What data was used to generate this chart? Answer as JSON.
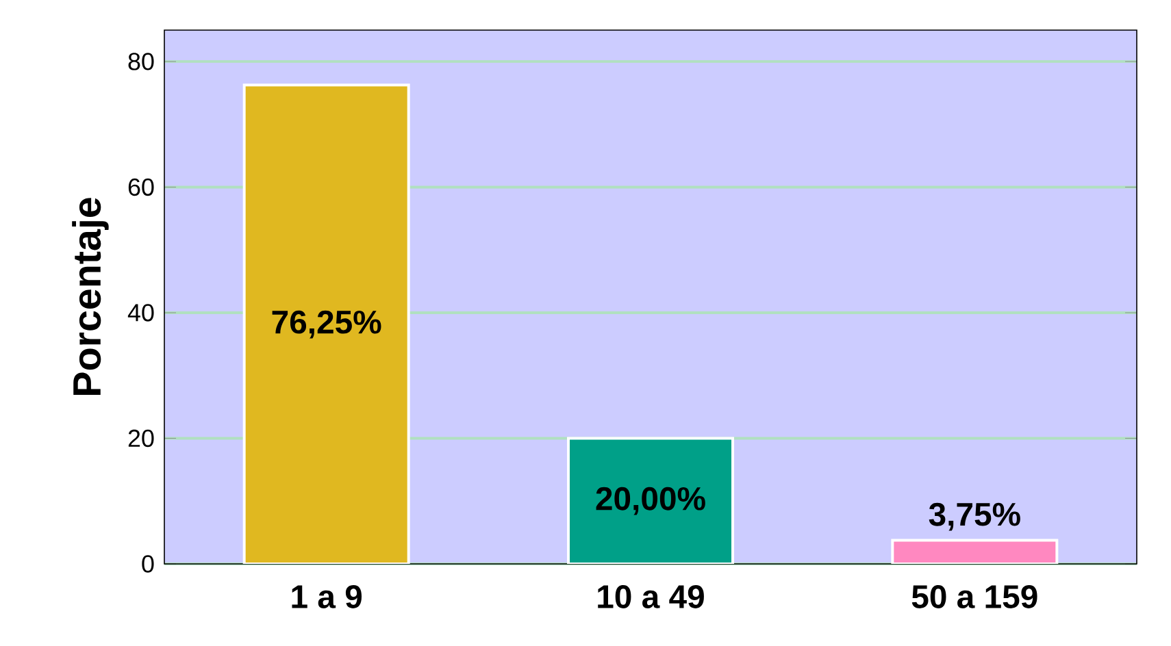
{
  "chart_data": {
    "type": "bar",
    "ylabel": "Porcentaje",
    "categories": [
      "1 a 9",
      "10 a 49",
      "50 a 159"
    ],
    "values": [
      76.25,
      20.0,
      3.75
    ],
    "colors": [
      "#e0b820",
      "#00a088",
      "#ff88c0"
    ],
    "value_labels": [
      "76,25%",
      "20,00%",
      "3,75%"
    ],
    "ylim": [
      0,
      85
    ],
    "yticks": [
      0,
      20,
      40,
      60,
      80
    ],
    "grid": "y"
  }
}
